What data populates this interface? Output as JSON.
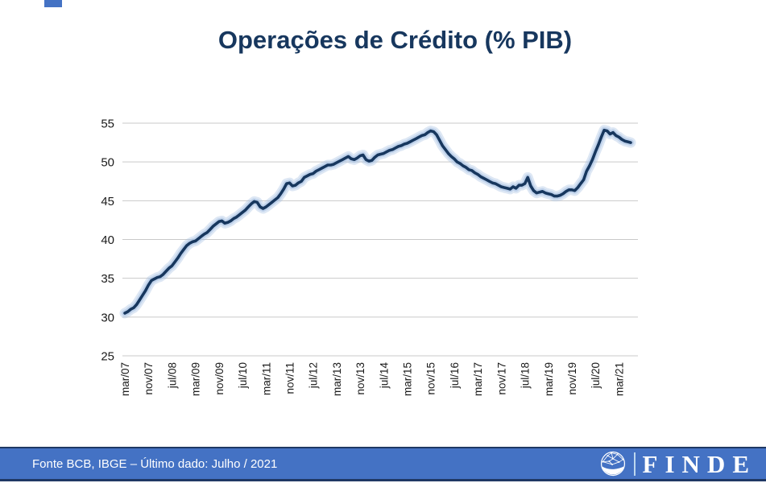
{
  "slide": {
    "title": "Operações de Crédito (% PIB)",
    "accent_color": "#4472C4"
  },
  "footer": {
    "source_text": "Fonte BCB, IBGE – Último dado: Julho / 2021",
    "logo_text": "FINDE",
    "bar_color": "#4472C4",
    "border_color": "#1F3864"
  },
  "chart_data": {
    "type": "line",
    "title": "Operações de Crédito (% PIB)",
    "series_name": "Operações de crédito (% PIB)",
    "x_frequency": "monthly",
    "x_first": "mar/07",
    "x_last": "jul/21",
    "x_tick_interval_months": 8,
    "x_tick_labels": [
      "mar/07",
      "nov/07",
      "jul/08",
      "mar/09",
      "nov/09",
      "jul/10",
      "mar/11",
      "nov/11",
      "jul/12",
      "mar/13",
      "nov/13",
      "jul/14",
      "mar/15",
      "nov/15",
      "jul/16",
      "mar/17",
      "nov/17",
      "jul/18",
      "mar/19",
      "nov/19",
      "jul/20",
      "mar/21"
    ],
    "ylim": [
      25,
      55
    ],
    "yticks": [
      25,
      30,
      35,
      40,
      45,
      50,
      55
    ],
    "grid": true,
    "legend": false,
    "line_color": "#17375E",
    "glow_color": "#A6C1E3",
    "gridline_color": "#C9C9C9",
    "values": [
      30.5,
      30.7,
      31.0,
      31.2,
      31.6,
      32.2,
      32.8,
      33.4,
      34.1,
      34.7,
      34.9,
      35.1,
      35.2,
      35.5,
      35.9,
      36.3,
      36.6,
      37.1,
      37.6,
      38.2,
      38.7,
      39.2,
      39.5,
      39.7,
      39.8,
      40.1,
      40.4,
      40.7,
      40.9,
      41.3,
      41.7,
      42.0,
      42.3,
      42.4,
      42.1,
      42.2,
      42.4,
      42.7,
      42.9,
      43.2,
      43.5,
      43.8,
      44.2,
      44.6,
      44.9,
      44.8,
      44.2,
      44.0,
      44.2,
      44.5,
      44.8,
      45.1,
      45.4,
      45.9,
      46.5,
      47.2,
      47.3,
      46.9,
      47.0,
      47.3,
      47.5,
      48.0,
      48.2,
      48.4,
      48.5,
      48.8,
      49.0,
      49.2,
      49.4,
      49.6,
      49.6,
      49.7,
      49.9,
      50.1,
      50.3,
      50.5,
      50.7,
      50.4,
      50.3,
      50.5,
      50.8,
      50.9,
      50.3,
      50.1,
      50.2,
      50.6,
      50.9,
      51.0,
      51.1,
      51.3,
      51.5,
      51.6,
      51.8,
      52.0,
      52.1,
      52.3,
      52.4,
      52.6,
      52.8,
      53.0,
      53.2,
      53.4,
      53.5,
      53.8,
      54.0,
      53.9,
      53.5,
      52.8,
      52.1,
      51.6,
      51.1,
      50.7,
      50.4,
      50.0,
      49.8,
      49.5,
      49.3,
      49.0,
      48.9,
      48.6,
      48.4,
      48.1,
      47.9,
      47.7,
      47.5,
      47.3,
      47.2,
      47.0,
      46.8,
      46.7,
      46.6,
      46.5,
      46.8,
      46.6,
      47.0,
      47.0,
      47.2,
      48.0,
      46.9,
      46.3,
      46.0,
      46.1,
      46.2,
      46.0,
      45.9,
      45.8,
      45.6,
      45.6,
      45.7,
      45.9,
      46.2,
      46.4,
      46.4,
      46.3,
      46.7,
      47.2,
      47.7,
      48.8,
      49.5,
      50.3,
      51.3,
      52.2,
      53.2,
      54.1,
      54.0,
      53.6,
      53.8,
      53.4,
      53.2,
      52.9,
      52.7,
      52.6,
      52.5
    ]
  }
}
